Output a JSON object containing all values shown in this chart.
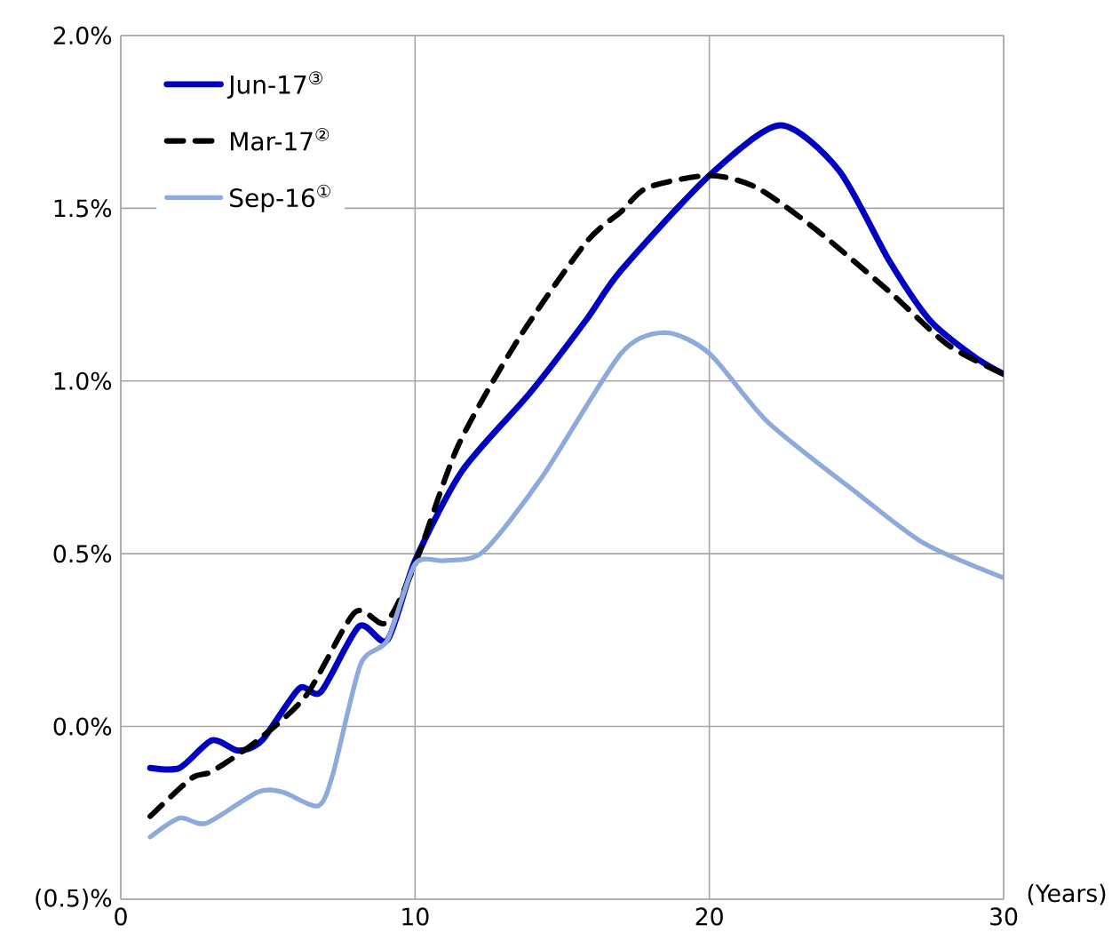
{
  "chart_data": {
    "type": "line",
    "xlabel": "(Years)",
    "xlim": [
      0,
      30
    ],
    "xticks": [
      0,
      10,
      20,
      30
    ],
    "ylim": [
      -0.5,
      2.0
    ],
    "yticks": [
      {
        "value": -0.5,
        "label": "(0.5)%"
      },
      {
        "value": 0,
        "label": "0.0%"
      },
      {
        "value": 0.5,
        "label": "0.5%"
      },
      {
        "value": 1.0,
        "label": "1.0%"
      },
      {
        "value": 1.5,
        "label": "1.5%"
      },
      {
        "value": 2.0,
        "label": "2.0%"
      }
    ],
    "grid": true,
    "legend": "top left",
    "marker": "none",
    "series": [
      {
        "name": "Jun-17$^{③}$",
        "color": "#0000c0",
        "line_style": "solid",
        "x": [
          1,
          2,
          3.1,
          4.0,
          4.8,
          6.06,
          6.8,
          8.1,
          9.06,
          10.0,
          11.6,
          13.9,
          15.8,
          17.0,
          20.0,
          22.4,
          24.4,
          26.1,
          27.5,
          29.0,
          30
        ],
        "values": [
          -0.12,
          -0.12,
          -0.04,
          -0.07,
          -0.04,
          0.11,
          0.1,
          0.29,
          0.25,
          0.48,
          0.74,
          0.965,
          1.175,
          1.32,
          1.595,
          1.74,
          1.61,
          1.35,
          1.175,
          1.07,
          1.02
        ]
      },
      {
        "name": "Mar-17$^{②}$",
        "color": "#000000",
        "line_style": "dashed",
        "x": [
          1.0,
          2.4,
          3.1,
          4.65,
          6.3,
          7.95,
          9.0,
          10.0,
          11.45,
          13.5,
          15.8,
          17.0,
          17.9,
          20.0,
          21.6,
          23.6,
          26.1,
          28.1,
          30
        ],
        "values": [
          -0.26,
          -0.15,
          -0.13,
          -0.04,
          0.09,
          0.33,
          0.3,
          0.47,
          0.81,
          1.12,
          1.4,
          1.49,
          1.56,
          1.595,
          1.56,
          1.44,
          1.26,
          1.105,
          1.02
        ]
      },
      {
        "name": "Sep-16$^{①}$",
        "color": "#8eaadb",
        "line_style": "solid",
        "x": [
          1.0,
          2.0,
          2.9,
          4.65,
          5.5,
          6.7,
          7.2,
          8.15,
          9.06,
          10.0,
          11.0,
          12.3,
          14.3,
          17.0,
          18.5,
          20.0,
          22.0,
          25.1,
          27.3,
          30
        ],
        "values": [
          -0.32,
          -0.265,
          -0.28,
          -0.19,
          -0.19,
          -0.23,
          -0.14,
          0.18,
          0.25,
          0.47,
          0.48,
          0.505,
          0.72,
          1.08,
          1.14,
          1.08,
          0.88,
          0.67,
          0.53,
          0.43
        ]
      }
    ]
  }
}
